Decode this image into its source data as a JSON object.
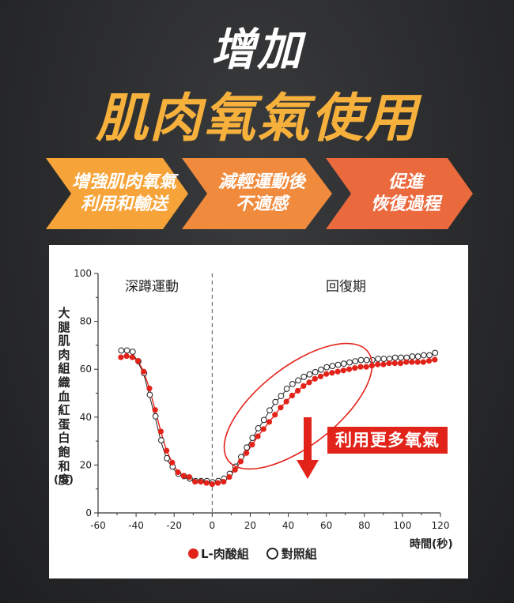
{
  "header": {
    "title_line1": "增加",
    "title_line2": "肌肉氧氣使用"
  },
  "steps": [
    {
      "line1": "增強肌肉氧氣",
      "line2": "利用和輸送"
    },
    {
      "line1": "減輕運動後",
      "line2": "不適感"
    },
    {
      "line1": "促進",
      "line2": "恢復過程"
    }
  ],
  "colors": {
    "title_accent": "#f6b03c",
    "step1": "#f6a43a",
    "step2": "#f08a3c",
    "step3": "#ea6a3e",
    "l_series": "#e2231a",
    "control_series": "#222222"
  },
  "chart_data": {
    "type": "scatter",
    "ylabel": "大腿肌肉組織血紅蛋白飽和度",
    "yunit": "(%)",
    "xlabel": "時間(秒)",
    "xlim": [
      -60,
      120
    ],
    "ylim": [
      0,
      100
    ],
    "xticks": [
      -60,
      -40,
      -20,
      0,
      20,
      40,
      60,
      80,
      100,
      120
    ],
    "yticks": [
      0,
      20,
      40,
      60,
      80,
      100
    ],
    "phase_labels": [
      "深蹲運動",
      "回復期"
    ],
    "vline_x": 0,
    "annotation": "利用更多氧氣",
    "series": [
      {
        "name": "L-肉酸組",
        "style": "filled",
        "x": [
          -48,
          -45,
          -42,
          -39,
          -36,
          -33,
          -30,
          -27,
          -24,
          -21,
          -18,
          -15,
          -12,
          -9,
          -6,
          -3,
          0,
          3,
          6,
          9,
          12,
          15,
          18,
          21,
          24,
          27,
          30,
          33,
          36,
          39,
          42,
          45,
          48,
          51,
          54,
          57,
          60,
          63,
          66,
          69,
          72,
          75,
          78,
          81,
          84,
          87,
          90,
          93,
          96,
          99,
          102,
          105,
          108,
          111,
          114,
          117
        ],
        "y": [
          65,
          65.5,
          65,
          63.5,
          59,
          52,
          43,
          34,
          26,
          21,
          17,
          15.5,
          15,
          13,
          13,
          12.5,
          12,
          12.5,
          13,
          15,
          18,
          21.5,
          25,
          28.5,
          32,
          35,
          38,
          41,
          44,
          46.5,
          49,
          51,
          53,
          54.5,
          56,
          57,
          58,
          58.5,
          59,
          59.5,
          60,
          60.5,
          61,
          61,
          61.5,
          62,
          62,
          62.5,
          62.5,
          62.5,
          63,
          63,
          63,
          63,
          63.5,
          64
        ]
      },
      {
        "name": "對照組",
        "style": "open",
        "x": [
          -48,
          -45,
          -42,
          -39,
          -36,
          -33,
          -30,
          -27,
          -24,
          -21,
          -18,
          -15,
          -12,
          -9,
          -6,
          -3,
          0,
          3,
          6,
          9,
          12,
          15,
          18,
          21,
          24,
          27,
          30,
          33,
          36,
          39,
          42,
          45,
          48,
          51,
          54,
          57,
          60,
          63,
          66,
          69,
          72,
          75,
          78,
          81,
          84,
          87,
          90,
          93,
          96,
          99,
          102,
          105,
          108,
          111,
          114,
          117
        ],
        "y": [
          67.5,
          67.5,
          67,
          63,
          58,
          49,
          40,
          30,
          22.5,
          19,
          16,
          15,
          14,
          13,
          13,
          13,
          12.5,
          13,
          14,
          16,
          19,
          23,
          27,
          31,
          35,
          38.5,
          42.5,
          46,
          48.5,
          51.5,
          53.5,
          55,
          56.5,
          57.5,
          58.5,
          59.5,
          60.5,
          61,
          61.5,
          62,
          62.5,
          63,
          63.5,
          63.5,
          63.5,
          64,
          64,
          64,
          64.5,
          64.5,
          64.5,
          65,
          65,
          65.5,
          65.5,
          66.5
        ]
      }
    ]
  }
}
